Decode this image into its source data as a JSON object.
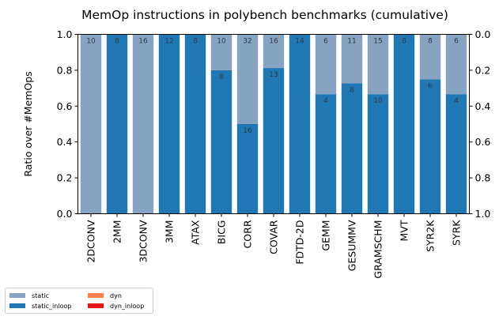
{
  "chart_data": {
    "type": "bar",
    "stacked": true,
    "title": "MemOp instructions in polybench benchmarks (cumulative)",
    "ylabel": "Ratio over #MemOps",
    "ylim": [
      0,
      1
    ],
    "yticks": [
      "0.0",
      "0.2",
      "0.4",
      "0.6",
      "0.8",
      "1.0"
    ],
    "yticks_right": [
      "1.0",
      "0.8",
      "0.6",
      "0.4",
      "0.2",
      "0.0"
    ],
    "grid": false,
    "legend_position": "bottom-left",
    "categories": [
      "2DCONV",
      "2MM",
      "3DCONV",
      "3MM",
      "ATAX",
      "BICG",
      "CORR",
      "COVAR",
      "FDTD-2D",
      "GEMM",
      "GESUMMV",
      "GRAMSCHM",
      "MVT",
      "SYR2K",
      "SYRK"
    ],
    "series": [
      {
        "name": "static_inloop",
        "color": "#1f77b4",
        "values": [
          0.0,
          1.0,
          0.0,
          1.0,
          1.0,
          0.8,
          0.5,
          0.8125,
          1.0,
          0.6667,
          0.7273,
          0.6667,
          1.0,
          0.75,
          0.6667
        ],
        "labels": [
          "",
          "8",
          "",
          "12",
          "8",
          "8",
          "16",
          "13",
          "14",
          "4",
          "8",
          "10",
          "8",
          "6",
          "4"
        ]
      },
      {
        "name": "static",
        "color": "#87a3c2",
        "values": [
          1.0,
          0.0,
          1.0,
          0.0,
          0.0,
          0.2,
          0.5,
          0.1875,
          0.0,
          0.3333,
          0.2727,
          0.3333,
          0.0,
          0.25,
          0.3333
        ],
        "labels": [
          "10",
          "8",
          "16",
          "12",
          "8",
          "10",
          "32",
          "16",
          "14",
          "6",
          "11",
          "15",
          "8",
          "8",
          "6"
        ]
      }
    ],
    "legend": [
      {
        "name": "static",
        "color": "#87a3c2"
      },
      {
        "name": "dyn",
        "color": "#ff7f50"
      },
      {
        "name": "static_inloop",
        "color": "#1f77b4"
      },
      {
        "name": "dyn_inloop",
        "color": "#e8141a"
      }
    ]
  }
}
